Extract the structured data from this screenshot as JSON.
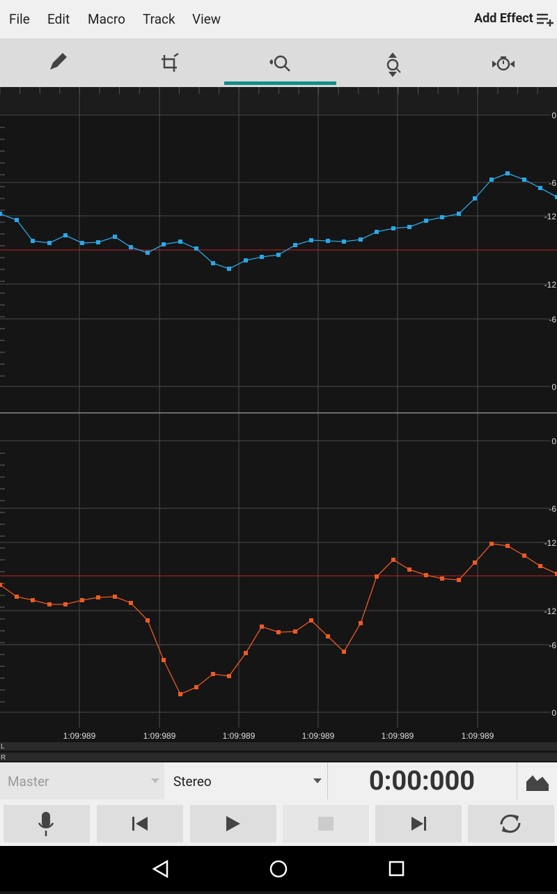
{
  "menu": [
    "File",
    "Edit",
    "Macro",
    "Track",
    "View"
  ],
  "add_effect": "Add Effect",
  "channels": [
    {
      "scale_labels": [
        "0",
        "-6",
        "-12",
        "-12",
        "-6",
        "0"
      ]
    },
    {
      "scale_labels": [
        "0",
        "-6",
        "-12",
        "-12",
        "-6",
        "0"
      ]
    }
  ],
  "time_labels": [
    "1:09:989",
    "1:09:989",
    "1:09:989",
    "1:09:989",
    "1:09:989",
    "1:09:989"
  ],
  "track_labels": [
    "L",
    "R"
  ],
  "controls": {
    "track": "Master",
    "mode": "Stereo",
    "time": "0:00:000"
  }
}
